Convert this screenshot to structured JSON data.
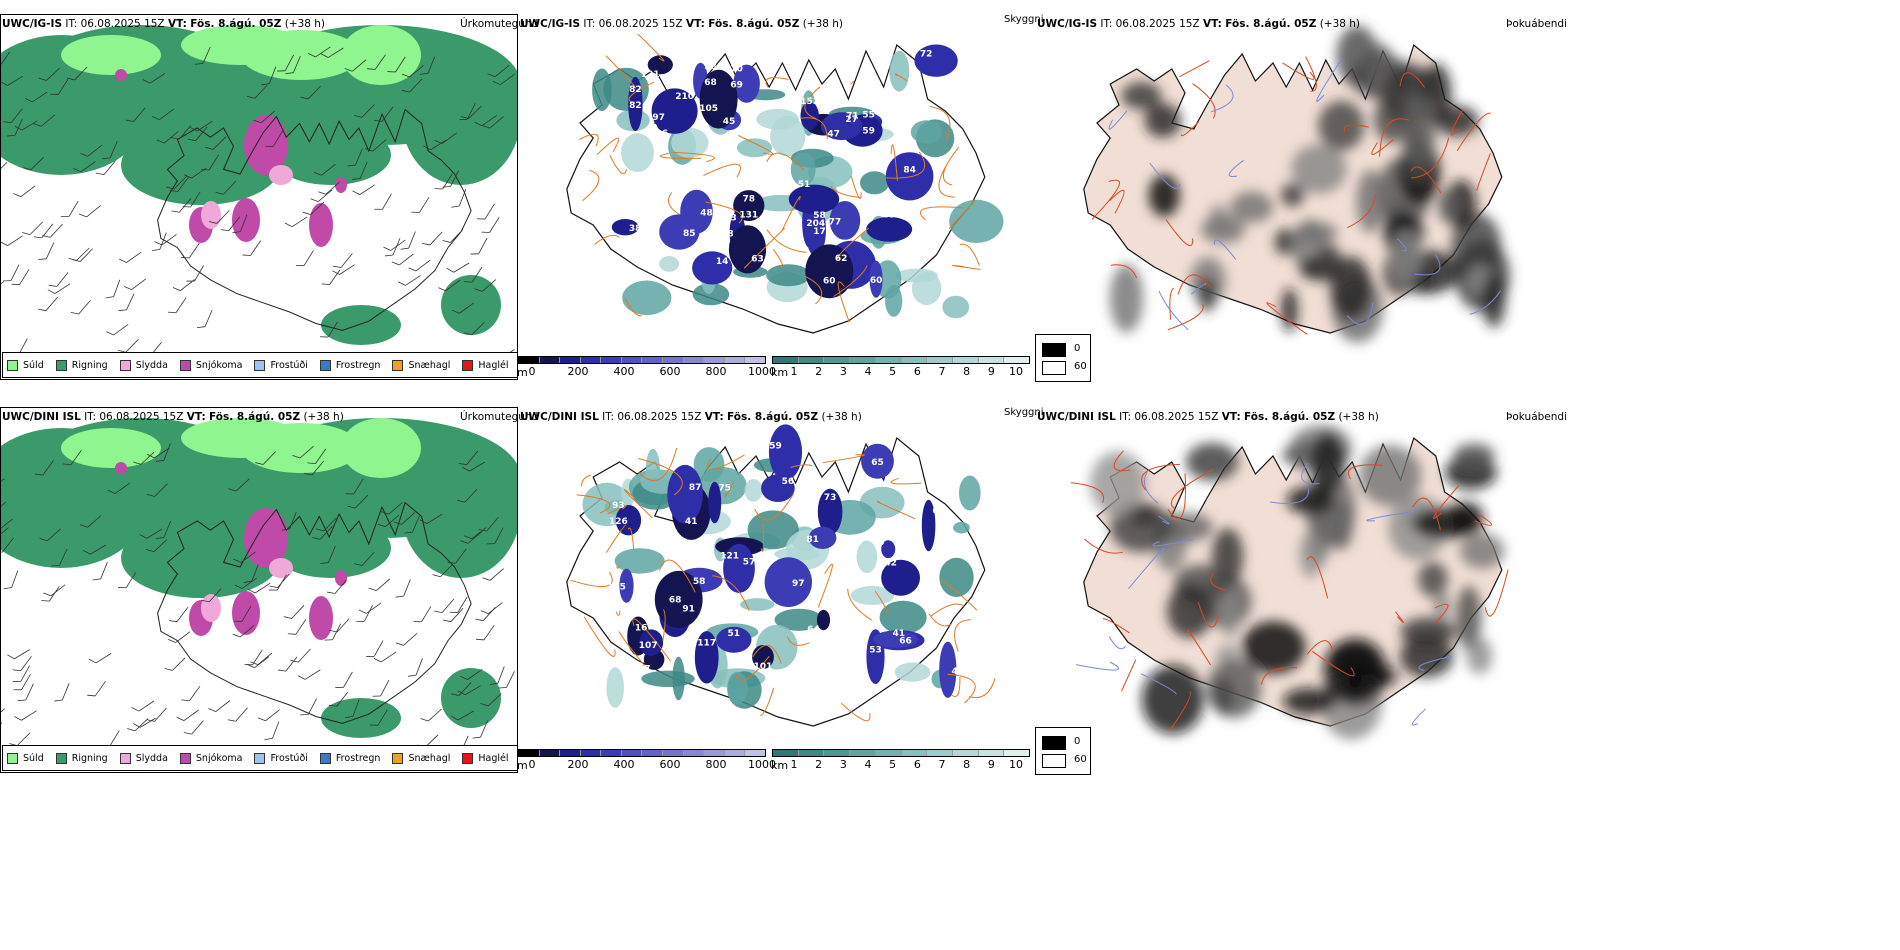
{
  "rows": [
    {
      "model": "UWC/IG-IS",
      "it_label": "IT:",
      "it_value": "06.08.2025 15Z",
      "vt_label": "VT:",
      "vt_value": "Fös. 8.ágú. 05Z",
      "lead": "(+38 h)",
      "precip_title": "Úrkomutegund",
      "cloud_title": "Skyggni",
      "fog_title": "Þokuábendi",
      "visibility_labels": [
        "103",
        "55",
        "68",
        "406",
        "82",
        "58",
        "69",
        "131",
        "66",
        "62",
        "45",
        "63",
        "71",
        "204",
        "48",
        "121",
        "63",
        "14",
        "77",
        "60",
        "210",
        "72",
        "60",
        "47",
        "51",
        "84",
        "85",
        "105",
        "152",
        "27",
        "48",
        "59",
        "58",
        "97",
        "82",
        "17",
        "70",
        "78",
        "38"
      ],
      "cloud_base_labels": []
    },
    {
      "model": "UWC/DINI ISL",
      "it_label": "IT:",
      "it_value": "06.08.2025 15Z",
      "vt_label": "VT:",
      "vt_value": "Fös. 8.ágú. 05Z",
      "lead": "(+38 h)",
      "precip_title": "Úrkomutegund",
      "cloud_title": "Skyggni",
      "fog_title": "Þokuábendi",
      "visibility_labels": [
        "93",
        "53",
        "49",
        "67",
        "73",
        "56",
        "105",
        "41",
        "75",
        "59",
        "58",
        "107",
        "16",
        "51",
        "97",
        "64",
        "68",
        "87",
        "81",
        "101",
        "60",
        "64",
        "65",
        "91",
        "42",
        "41",
        "66",
        "121",
        "117",
        "57",
        "126"
      ],
      "cloud_base_labels": []
    }
  ],
  "precip_legend": [
    {
      "label": "Súld",
      "color": "#8ff58f"
    },
    {
      "label": "Rigning",
      "color": "#3a9a6a"
    },
    {
      "label": "Slydda",
      "color": "#f0a8d8"
    },
    {
      "label": "Snjókoma",
      "color": "#c04aa8"
    },
    {
      "label": "Frostúði",
      "color": "#9cc4ee"
    },
    {
      "label": "Frostregn",
      "color": "#3a78c8"
    },
    {
      "label": "Snæhagl",
      "color": "#f0a020"
    },
    {
      "label": "Haglél",
      "color": "#e01818"
    }
  ],
  "height_bar": {
    "unit": "m",
    "ticks": [
      "0",
      "200",
      "400",
      "600",
      "800",
      "1000"
    ],
    "colors": [
      "#000000",
      "#141450",
      "#1e1e8c",
      "#2e2ea8",
      "#3c3cb4",
      "#5050c0",
      "#6262c8",
      "#7474cc",
      "#8888d2",
      "#9a9ad8",
      "#acace0",
      "#c0c0e8"
    ]
  },
  "km_bar": {
    "unit": "km",
    "ticks": [
      "1",
      "2",
      "3",
      "4",
      "5",
      "6",
      "7",
      "8",
      "9",
      "10"
    ],
    "colors": [
      "#2e7a78",
      "#3d8a86",
      "#4d9895",
      "#5ea5a2",
      "#72b3b0",
      "#86c0bd",
      "#9bccca",
      "#b1d8d6",
      "#c8e4e2",
      "#e0f0ef"
    ]
  },
  "fog_legend": {
    "black": "0",
    "white": "60"
  }
}
